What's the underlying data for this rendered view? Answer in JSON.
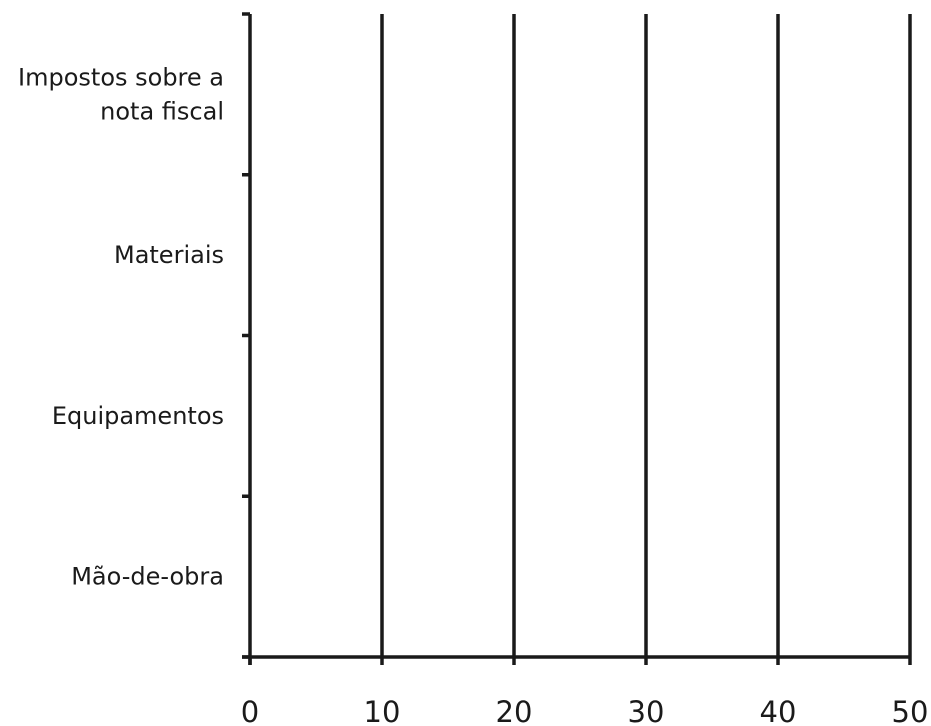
{
  "chart_data": {
    "type": "bar",
    "orientation": "horizontal",
    "title": "",
    "xlabel": "",
    "ylabel": "",
    "categories": [
      "Impostos sobre a nota fiscal",
      "Materiais",
      "Equipamentos",
      "Mão-de-obra"
    ],
    "category_label_lines": [
      [
        "Impostos sobre a",
        "nota fiscal"
      ],
      [
        "Materiais"
      ],
      [
        "Equipamentos"
      ],
      [
        "Mão-de-obra"
      ]
    ],
    "values": [
      null,
      null,
      null,
      null
    ],
    "xlim": [
      0,
      50
    ],
    "xticks": [
      0,
      10,
      20,
      30,
      40,
      50
    ],
    "grid": true,
    "line_color": "#1a1a1a"
  }
}
